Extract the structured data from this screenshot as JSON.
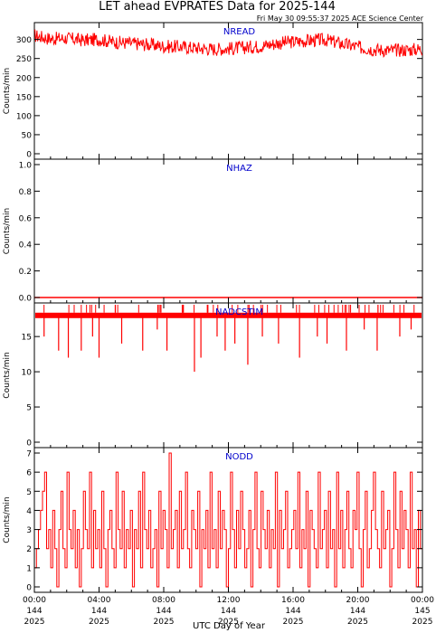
{
  "header": {
    "title": "LET ahead EVPRATES Data for 2025-144",
    "timestamp": "Fri May 30 09:55:37 2025 ACE Science Center"
  },
  "colors": {
    "series": "#ff0000",
    "panel_label": "#0000cc",
    "axes": "#000000"
  },
  "chart_data": [
    {
      "type": "line",
      "title": "NREAD",
      "ylabel": "Counts/min",
      "ylim": [
        0,
        330
      ],
      "yticks": [
        0,
        50,
        100,
        150,
        200,
        250,
        300
      ],
      "xlim": [
        0,
        24
      ],
      "series": [
        {
          "x": [
            0,
            1,
            2,
            3,
            4,
            5,
            6,
            7,
            8,
            9,
            10,
            11,
            12,
            13,
            14,
            15,
            16,
            17,
            18,
            19,
            20,
            21,
            22,
            23,
            24
          ],
          "values": [
            310,
            302,
            303,
            298,
            300,
            293,
            290,
            287,
            282,
            281,
            278,
            275,
            276,
            279,
            283,
            290,
            294,
            297,
            299,
            289,
            280,
            274,
            271,
            273,
            275
          ]
        }
      ]
    },
    {
      "type": "line",
      "title": "NHAZ",
      "ylabel": "Counts/min",
      "ylim": [
        0,
        1.0
      ],
      "yticks": [
        0.0,
        0.2,
        0.4,
        0.6,
        0.8,
        1.0
      ],
      "xlim": [
        0,
        24
      ],
      "series": [
        {
          "x": [
            0,
            24
          ],
          "values": [
            0,
            0
          ]
        }
      ]
    },
    {
      "type": "line",
      "title": "NADCSTIM",
      "ylabel": "Counts/min",
      "ylim": [
        0,
        19
      ],
      "yticks": [
        0,
        5,
        10,
        15
      ],
      "xlim": [
        0,
        24
      ],
      "series": [
        {
          "baseline": 18,
          "dips": [
            {
              "x": 0.6,
              "value": 15
            },
            {
              "x": 1.5,
              "value": 13
            },
            {
              "x": 2.1,
              "value": 12
            },
            {
              "x": 2.9,
              "value": 13
            },
            {
              "x": 3.6,
              "value": 15
            },
            {
              "x": 4.0,
              "value": 12
            },
            {
              "x": 5.4,
              "value": 14
            },
            {
              "x": 6.7,
              "value": 13
            },
            {
              "x": 7.6,
              "value": 16
            },
            {
              "x": 8.2,
              "value": 13
            },
            {
              "x": 9.9,
              "value": 10
            },
            {
              "x": 10.3,
              "value": 12
            },
            {
              "x": 11.3,
              "value": 15
            },
            {
              "x": 11.8,
              "value": 13
            },
            {
              "x": 12.4,
              "value": 14
            },
            {
              "x": 13.2,
              "value": 11
            },
            {
              "x": 14.1,
              "value": 15
            },
            {
              "x": 15.1,
              "value": 14
            },
            {
              "x": 16.4,
              "value": 12
            },
            {
              "x": 17.5,
              "value": 15
            },
            {
              "x": 18.1,
              "value": 14
            },
            {
              "x": 19.3,
              "value": 13
            },
            {
              "x": 20.4,
              "value": 16
            },
            {
              "x": 21.2,
              "value": 13
            },
            {
              "x": 22.6,
              "value": 15
            },
            {
              "x": 23.3,
              "value": 16
            }
          ]
        }
      ]
    },
    {
      "type": "line",
      "title": "NODD",
      "ylabel": "Counts/min",
      "ylim": [
        0,
        7
      ],
      "yticks": [
        0,
        1,
        2,
        3,
        4,
        5,
        6,
        7
      ],
      "xlim": [
        0,
        24
      ],
      "series": [
        {
          "levels": [
            1,
            2,
            3,
            4,
            5,
            6,
            2,
            3,
            1,
            4,
            2,
            0,
            3,
            5,
            2,
            1,
            6,
            3,
            2,
            4,
            1,
            3,
            0,
            2,
            5,
            3,
            2,
            6,
            1,
            4,
            2,
            3,
            1,
            5,
            2,
            0,
            3,
            4,
            2,
            1,
            6,
            3,
            2,
            5,
            1,
            3,
            2,
            4,
            0,
            3,
            2,
            5,
            1,
            6,
            3,
            2,
            4,
            1,
            2,
            3,
            0,
            5,
            2,
            4,
            3,
            1,
            7,
            2,
            3,
            4,
            1,
            5,
            2,
            3,
            6,
            2,
            1,
            4,
            3,
            2,
            5,
            0,
            3,
            2,
            4,
            1,
            6,
            2,
            3,
            1,
            5,
            2,
            4,
            3,
            0,
            2,
            6,
            3,
            1,
            4,
            2,
            5,
            3,
            1,
            2,
            4,
            0,
            3,
            6,
            2,
            1,
            5,
            3,
            2,
            4,
            1,
            3,
            2,
            6,
            0,
            4,
            2,
            3,
            5,
            1,
            2,
            3,
            4,
            2,
            6,
            1,
            3,
            2,
            5,
            0,
            4,
            3,
            2,
            1,
            6,
            2,
            3,
            4,
            1,
            5,
            2,
            3,
            0,
            6,
            2,
            4,
            1,
            3,
            5,
            2,
            1,
            4,
            3,
            6,
            2,
            0,
            3,
            5,
            1,
            2,
            4,
            6,
            3,
            2,
            1,
            5,
            2,
            3,
            4,
            0,
            2,
            6,
            3,
            1,
            5,
            2,
            4,
            3,
            1,
            6,
            2,
            3,
            0,
            4,
            2
          ]
        }
      ]
    }
  ],
  "x_axis": {
    "label": "UTC Day of Year",
    "ticks": [
      {
        "x": 0,
        "time": "00:00",
        "doy": "144",
        "year": "2025"
      },
      {
        "x": 4,
        "time": "04:00",
        "doy": "144",
        "year": "2025"
      },
      {
        "x": 8,
        "time": "08:00",
        "doy": "144",
        "year": "2025"
      },
      {
        "x": 12,
        "time": "12:00",
        "doy": "144",
        "year": "2025"
      },
      {
        "x": 16,
        "time": "16:00",
        "doy": "144",
        "year": "2025"
      },
      {
        "x": 20,
        "time": "20:00",
        "doy": "144",
        "year": "2025"
      },
      {
        "x": 24,
        "time": "00:00",
        "doy": "145",
        "year": "2025"
      }
    ]
  }
}
